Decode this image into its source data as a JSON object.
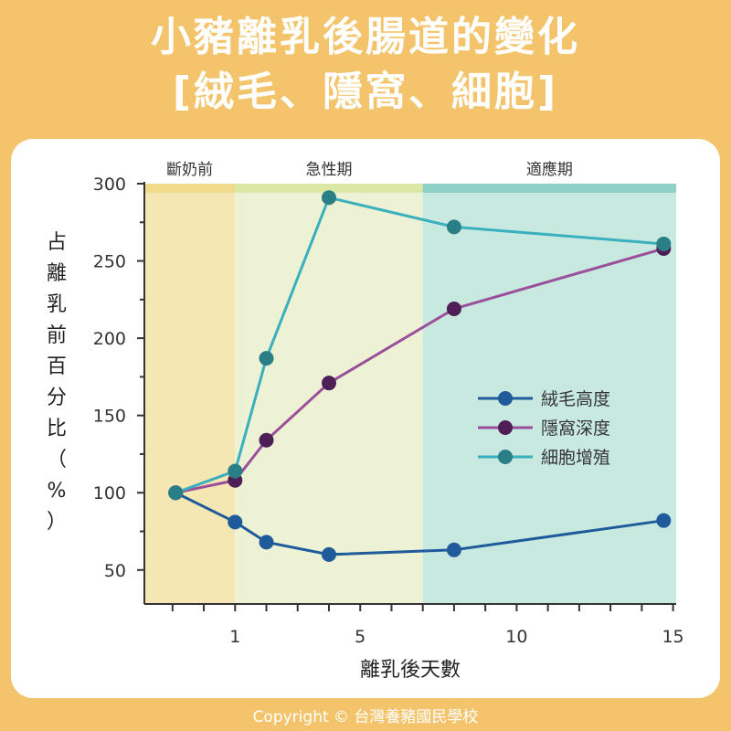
{
  "title": {
    "line1": "小豬離乳後腸道的變化",
    "line2": "[絨毛、隱窩、細胞]"
  },
  "copyright": "Copyright © 台灣養豬國民學校",
  "chart_data": {
    "type": "line",
    "xlabel": "離乳後天數",
    "ylabel": "占離乳前百分比（%）",
    "xlim": [
      -1.9,
      15.1
    ],
    "ylim": [
      28,
      300
    ],
    "xticks": [
      1,
      5,
      10,
      15
    ],
    "yticks": [
      50,
      100,
      150,
      200,
      250,
      300
    ],
    "phases": [
      {
        "label": "斷奶前",
        "x_start": -1.9,
        "x_end": 1,
        "fill": "#f5e7b4",
        "band": "#f0da8c"
      },
      {
        "label": "急性期",
        "x_start": 1,
        "x_end": 7,
        "fill": "#eef2d4",
        "band": "#dbe8a5"
      },
      {
        "label": "適應期",
        "x_start": 7,
        "x_end": 15.1,
        "fill": "#c8e9e0",
        "band": "#8fd1c6"
      }
    ],
    "series": [
      {
        "name": "絨毛高度",
        "color": "#1f5b9a",
        "x": [
          -0.9,
          1,
          2,
          4,
          8,
          14.7
        ],
        "y": [
          100,
          81,
          68,
          60,
          63,
          82
        ]
      },
      {
        "name": "隱窩深度",
        "color": "#9b4f9b",
        "marker": "#4e1f56",
        "x": [
          -0.9,
          1,
          2,
          4,
          8,
          14.7
        ],
        "y": [
          100,
          108,
          134,
          171,
          219,
          258
        ]
      },
      {
        "name": "細胞增殖",
        "color": "#3aafbd",
        "marker": "#2a7f86",
        "x": [
          -0.9,
          1,
          2,
          4,
          8,
          14.7
        ],
        "y": [
          100,
          114,
          187,
          291,
          272,
          261
        ]
      }
    ],
    "legend_position": "center-right",
    "grid": false
  }
}
